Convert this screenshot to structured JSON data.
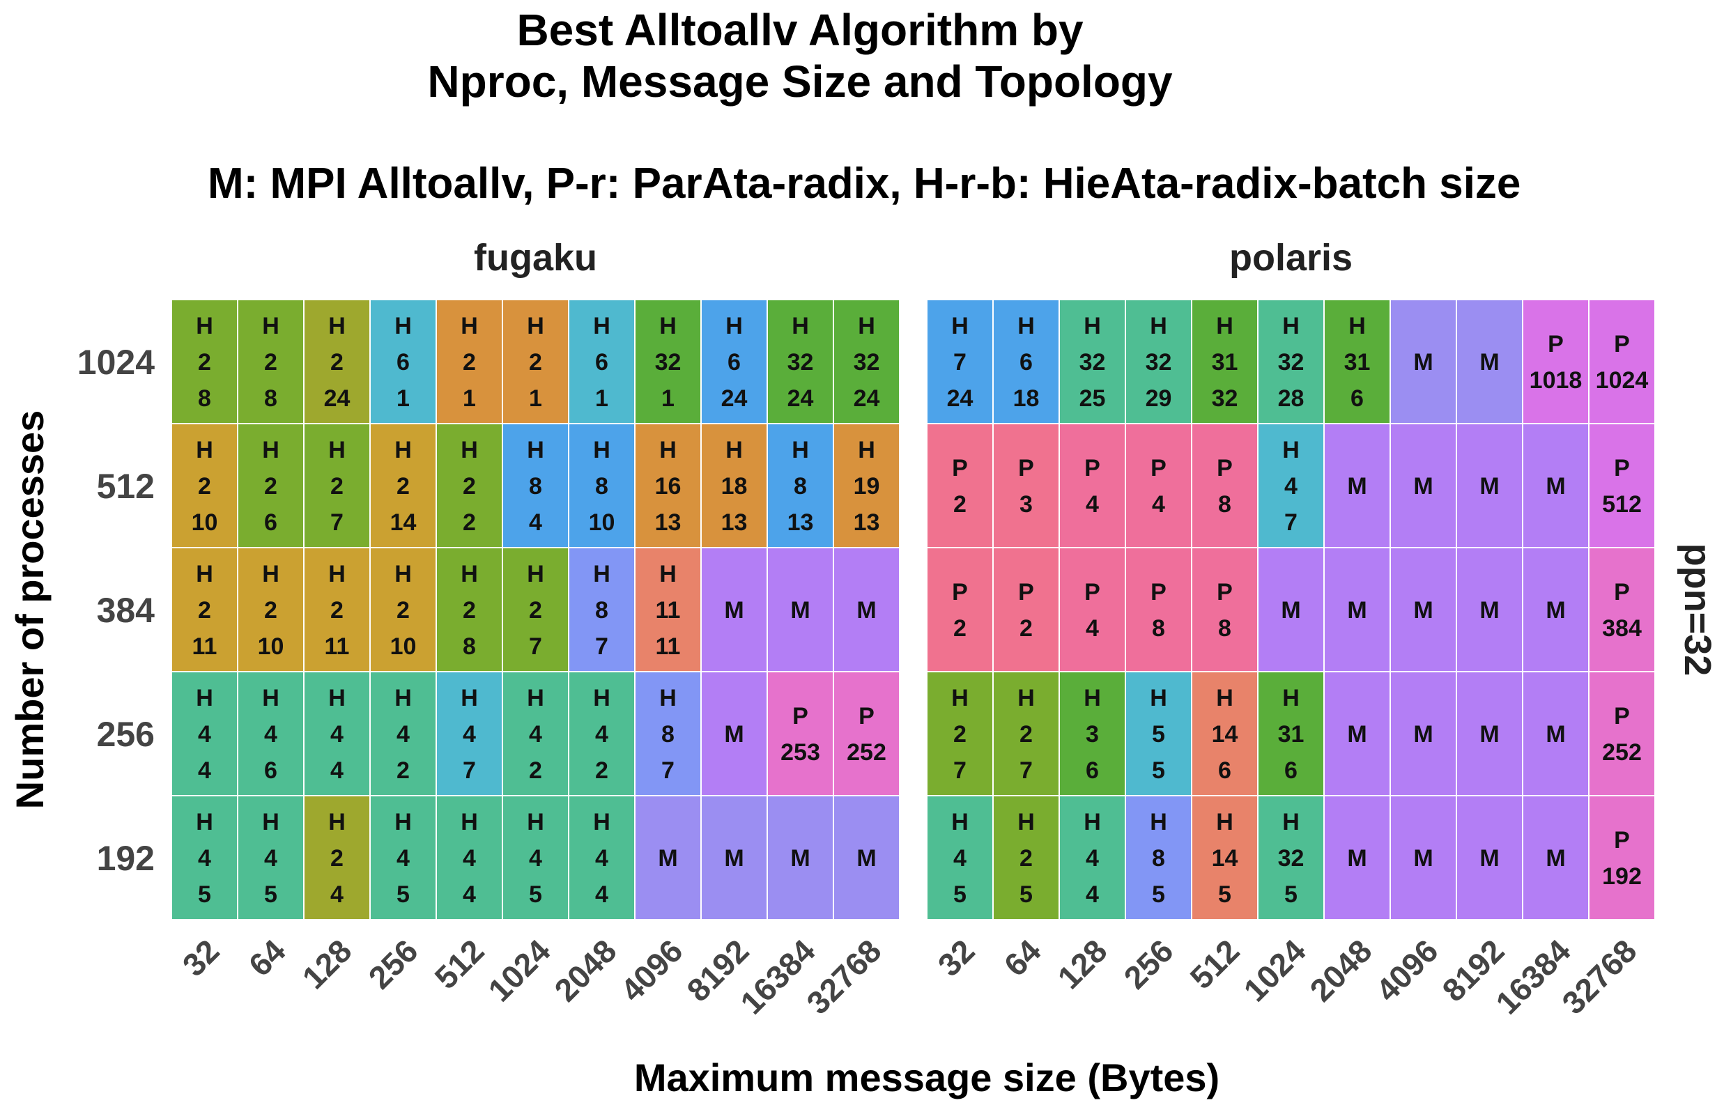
{
  "title_line1": "Best Alltoallv Algorithm by",
  "title_line2": "Nproc, Message Size and Topology",
  "subtitle": "M: MPI Alltoallv, P-r: ParAta-radix, H-r-b: HieAta-radix-batch size",
  "chart_data": {
    "type": "heatmap",
    "xlabel": "Maximum message size (Bytes)",
    "ylabel": "Number of processes",
    "facet_strip_right": "ppn=32",
    "x_categories": [
      "32",
      "64",
      "128",
      "256",
      "512",
      "1024",
      "2048",
      "4096",
      "8192",
      "16384",
      "32768"
    ],
    "y_categories": [
      "1024",
      "512",
      "384",
      "256",
      "192"
    ],
    "panels": [
      {
        "name": "fugaku",
        "cells": [
          [
            [
              "H",
              "2",
              "8"
            ],
            [
              "H",
              "2",
              "8"
            ],
            [
              "H",
              "2",
              "24"
            ],
            [
              "H",
              "6",
              "1"
            ],
            [
              "H",
              "2",
              "1"
            ],
            [
              "H",
              "2",
              "1"
            ],
            [
              "H",
              "6",
              "1"
            ],
            [
              "H",
              "32",
              "1"
            ],
            [
              "H",
              "6",
              "24"
            ],
            [
              "H",
              "32",
              "24"
            ],
            [
              "H",
              "32",
              "24"
            ]
          ],
          [
            [
              "H",
              "2",
              "10"
            ],
            [
              "H",
              "2",
              "6"
            ],
            [
              "H",
              "2",
              "7"
            ],
            [
              "H",
              "2",
              "14"
            ],
            [
              "H",
              "2",
              "2"
            ],
            [
              "H",
              "8",
              "4"
            ],
            [
              "H",
              "8",
              "10"
            ],
            [
              "H",
              "16",
              "13"
            ],
            [
              "H",
              "18",
              "13"
            ],
            [
              "H",
              "8",
              "13"
            ],
            [
              "H",
              "19",
              "13"
            ]
          ],
          [
            [
              "H",
              "2",
              "11"
            ],
            [
              "H",
              "2",
              "10"
            ],
            [
              "H",
              "2",
              "11"
            ],
            [
              "H",
              "2",
              "10"
            ],
            [
              "H",
              "2",
              "8"
            ],
            [
              "H",
              "2",
              "7"
            ],
            [
              "H",
              "8",
              "7"
            ],
            [
              "H",
              "11",
              "11"
            ],
            [
              "M"
            ],
            [
              "M"
            ],
            [
              "M"
            ]
          ],
          [
            [
              "H",
              "4",
              "4"
            ],
            [
              "H",
              "4",
              "6"
            ],
            [
              "H",
              "4",
              "4"
            ],
            [
              "H",
              "4",
              "2"
            ],
            [
              "H",
              "4",
              "7"
            ],
            [
              "H",
              "4",
              "2"
            ],
            [
              "H",
              "4",
              "2"
            ],
            [
              "H",
              "8",
              "7"
            ],
            [
              "M"
            ],
            [
              "P",
              "253"
            ],
            [
              "P",
              "252"
            ]
          ],
          [
            [
              "H",
              "4",
              "5"
            ],
            [
              "H",
              "4",
              "5"
            ],
            [
              "H",
              "2",
              "4"
            ],
            [
              "H",
              "4",
              "5"
            ],
            [
              "H",
              "4",
              "4"
            ],
            [
              "H",
              "4",
              "5"
            ],
            [
              "H",
              "4",
              "4"
            ],
            [
              "M"
            ],
            [
              "M"
            ],
            [
              "M"
            ],
            [
              "M"
            ]
          ]
        ]
      },
      {
        "name": "polaris",
        "cells": [
          [
            [
              "H",
              "7",
              "24"
            ],
            [
              "H",
              "6",
              "18"
            ],
            [
              "H",
              "32",
              "25"
            ],
            [
              "H",
              "32",
              "29"
            ],
            [
              "H",
              "31",
              "32"
            ],
            [
              "H",
              "32",
              "28"
            ],
            [
              "H",
              "31",
              "6"
            ],
            [
              "M"
            ],
            [
              "M"
            ],
            [
              "P",
              "1018"
            ],
            [
              "P",
              "1024"
            ]
          ],
          [
            [
              "P",
              "2"
            ],
            [
              "P",
              "3"
            ],
            [
              "P",
              "4"
            ],
            [
              "P",
              "4"
            ],
            [
              "P",
              "8"
            ],
            [
              "H",
              "4",
              "7"
            ],
            [
              "M"
            ],
            [
              "M"
            ],
            [
              "M"
            ],
            [
              "M"
            ],
            [
              "P",
              "512"
            ]
          ],
          [
            [
              "P",
              "2"
            ],
            [
              "P",
              "2"
            ],
            [
              "P",
              "4"
            ],
            [
              "P",
              "8"
            ],
            [
              "P",
              "8"
            ],
            [
              "M"
            ],
            [
              "M"
            ],
            [
              "M"
            ],
            [
              "M"
            ],
            [
              "M"
            ],
            [
              "P",
              "384"
            ]
          ],
          [
            [
              "H",
              "2",
              "7"
            ],
            [
              "H",
              "2",
              "7"
            ],
            [
              "H",
              "3",
              "6"
            ],
            [
              "H",
              "5",
              "5"
            ],
            [
              "H",
              "14",
              "6"
            ],
            [
              "H",
              "31",
              "6"
            ],
            [
              "M"
            ],
            [
              "M"
            ],
            [
              "M"
            ],
            [
              "M"
            ],
            [
              "P",
              "252"
            ]
          ],
          [
            [
              "H",
              "4",
              "5"
            ],
            [
              "H",
              "2",
              "5"
            ],
            [
              "H",
              "4",
              "4"
            ],
            [
              "H",
              "8",
              "5"
            ],
            [
              "H",
              "14",
              "5"
            ],
            [
              "H",
              "32",
              "5"
            ],
            [
              "M"
            ],
            [
              "M"
            ],
            [
              "M"
            ],
            [
              "M"
            ],
            [
              "P",
              "192"
            ]
          ]
        ]
      }
    ],
    "colors": {
      "M": "#b37ef5",
      "M_alt": "#9b8ef2",
      "P_low": "#f0728f",
      "P_mid": "#ef6f9b",
      "P_high": "#e672cc",
      "P_top": "#d973e8",
      "H_olive": "#9ea82e",
      "H_green": "#7aad2f",
      "H_darkgreen": "#5aae3a",
      "H_teal": "#4fbe93",
      "H_cyan": "#4fb9cf",
      "H_blue": "#4da3ea",
      "H_ochre": "#cba131",
      "H_orange": "#d8923d",
      "H_salmon": "#e8836a",
      "H_periwinkle": "#8296f5"
    }
  }
}
